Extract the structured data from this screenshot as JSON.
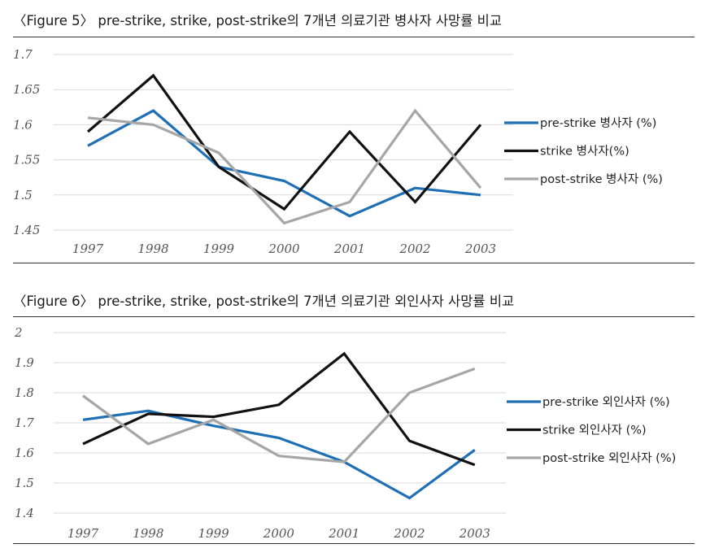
{
  "chart_data": [
    {
      "type": "line",
      "title": "〈Figure 5〉 pre-strike, strike, post-strike의 7개년 의료기관 병사자 사망률 비교",
      "categories": [
        "1997",
        "1998",
        "1999",
        "2000",
        "2001",
        "2002",
        "2003"
      ],
      "yticks": [
        "1.45",
        "1.5",
        "1.55",
        "1.6",
        "1.65",
        "1.7"
      ],
      "ylim": [
        1.45,
        1.7
      ],
      "grid": true,
      "legend_position": "right",
      "series": [
        {
          "name": "pre-strike 병사자 (%)",
          "color": "#1f6fb5",
          "values": [
            1.57,
            1.62,
            1.54,
            1.52,
            1.47,
            1.51,
            1.5
          ]
        },
        {
          "name": "strike 병사자(%)",
          "color": "#111111",
          "values": [
            1.59,
            1.67,
            1.54,
            1.48,
            1.59,
            1.49,
            1.6
          ]
        },
        {
          "name": "post-strike 병사자 (%)",
          "color": "#a6a6a6",
          "values": [
            1.61,
            1.6,
            1.56,
            1.46,
            1.49,
            1.62,
            1.51
          ]
        }
      ]
    },
    {
      "type": "line",
      "title": "〈Figure 6〉 pre-strike, strike, post-strike의 7개년 의료기관 외인사자 사망률 비교",
      "categories": [
        "1997",
        "1998",
        "1999",
        "2000",
        "2001",
        "2002",
        "2003"
      ],
      "yticks": [
        "1.4",
        "1.5",
        "1.6",
        "1.7",
        "1.8",
        "1.9",
        "2"
      ],
      "ylim": [
        1.4,
        2.0
      ],
      "grid": true,
      "legend_position": "right",
      "series": [
        {
          "name": "pre-strike 외인사자 (%)",
          "color": "#1f6fb5",
          "values": [
            1.71,
            1.74,
            1.69,
            1.65,
            1.57,
            1.45,
            1.61
          ]
        },
        {
          "name": "strike 외인사자 (%)",
          "color": "#111111",
          "values": [
            1.63,
            1.73,
            1.72,
            1.76,
            1.93,
            1.64,
            1.56
          ]
        },
        {
          "name": "post-strike 외인사자 (%)",
          "color": "#a6a6a6",
          "values": [
            1.79,
            1.63,
            1.71,
            1.59,
            1.57,
            1.8,
            1.88
          ]
        }
      ]
    }
  ]
}
